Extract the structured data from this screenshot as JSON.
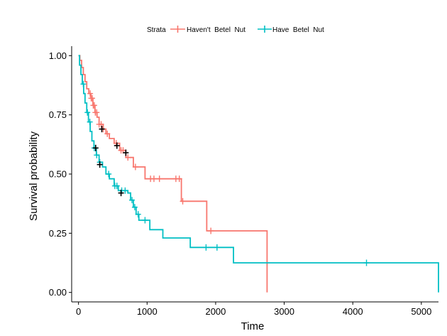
{
  "chart_data": {
    "type": "line",
    "subtype": "kaplan-meier-step",
    "xlabel": "Time",
    "ylabel": "Survival probability",
    "xlim": [
      -100,
      5250
    ],
    "ylim": [
      -0.04,
      1.04
    ],
    "x_ticks": [
      0,
      1000,
      2000,
      3000,
      4000,
      5000
    ],
    "x_tick_labels": [
      "0",
      "1000",
      "2000",
      "3000",
      "4000",
      "5000"
    ],
    "y_ticks": [
      0,
      0.25,
      0.5,
      0.75,
      1
    ],
    "y_tick_labels": [
      "0.00",
      "0.25",
      "0.50",
      "0.75",
      "1.00"
    ],
    "grid": false,
    "legend": {
      "position": "top",
      "title": "Strata",
      "entries": [
        "Haven't  Betel  Nut",
        "Have  Betel  Nut"
      ]
    },
    "series": [
      {
        "name": "Haven't  Betel  Nut",
        "color": "#F8766D",
        "steps": [
          [
            0,
            1.0
          ],
          [
            20,
            0.98
          ],
          [
            45,
            0.95
          ],
          [
            70,
            0.92
          ],
          [
            95,
            0.89
          ],
          [
            120,
            0.86
          ],
          [
            150,
            0.84
          ],
          [
            180,
            0.82
          ],
          [
            210,
            0.79
          ],
          [
            240,
            0.76
          ],
          [
            270,
            0.74
          ],
          [
            300,
            0.71
          ],
          [
            360,
            0.69
          ],
          [
            400,
            0.67
          ],
          [
            450,
            0.65
          ],
          [
            520,
            0.63
          ],
          [
            600,
            0.6
          ],
          [
            690,
            0.57
          ],
          [
            800,
            0.53
          ],
          [
            970,
            0.48
          ],
          [
            1500,
            0.385
          ],
          [
            1870,
            0.26
          ],
          [
            2750,
            0.0
          ]
        ],
        "censor_times": [
          170,
          185,
          200,
          215,
          230,
          245,
          265,
          300,
          330,
          360,
          420,
          550,
          620,
          650,
          720,
          830,
          1050,
          1100,
          1180,
          1420,
          1470,
          1520,
          1930
        ],
        "end_time": 2750
      },
      {
        "name": "Have  Betel  Nut",
        "color": "#00BFC4",
        "steps": [
          [
            0,
            1.0
          ],
          [
            15,
            0.96
          ],
          [
            35,
            0.92
          ],
          [
            55,
            0.88
          ],
          [
            75,
            0.84
          ],
          [
            95,
            0.8
          ],
          [
            120,
            0.76
          ],
          [
            145,
            0.72
          ],
          [
            170,
            0.68
          ],
          [
            195,
            0.64
          ],
          [
            225,
            0.61
          ],
          [
            260,
            0.58
          ],
          [
            300,
            0.55
          ],
          [
            350,
            0.53
          ],
          [
            400,
            0.5
          ],
          [
            450,
            0.48
          ],
          [
            520,
            0.45
          ],
          [
            580,
            0.43
          ],
          [
            720,
            0.42
          ],
          [
            760,
            0.39
          ],
          [
            800,
            0.36
          ],
          [
            840,
            0.33
          ],
          [
            880,
            0.305
          ],
          [
            1040,
            0.265
          ],
          [
            1230,
            0.23
          ],
          [
            1630,
            0.19
          ],
          [
            2260,
            0.125
          ],
          [
            5250,
            0.0
          ]
        ],
        "censor_times": [
          70,
          130,
          165,
          230,
          265,
          310,
          440,
          530,
          560,
          630,
          680,
          780,
          820,
          870,
          970,
          1860,
          2020,
          4200
        ],
        "end_time": 5250
      }
    ],
    "highlight_censor_marks": [
      {
        "x": 340,
        "y": 0.69
      },
      {
        "x": 560,
        "y": 0.62
      },
      {
        "x": 690,
        "y": 0.59
      },
      {
        "x": 250,
        "y": 0.61
      },
      {
        "x": 310,
        "y": 0.54
      },
      {
        "x": 620,
        "y": 0.42
      }
    ],
    "colors": {
      "axis": "#000000",
      "highlight_mark": "#000000"
    }
  }
}
